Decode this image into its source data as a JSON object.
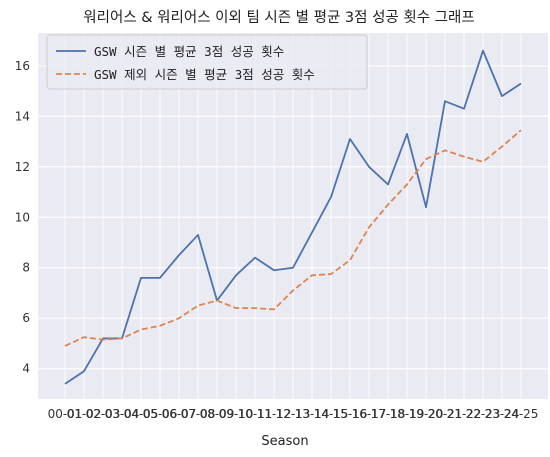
{
  "chart_data": {
    "type": "line",
    "title": "워리어스 & 워리어스 이외 팀 시즌 별 평균 3점 성공 횟수 그래프",
    "xlabel": "Season",
    "ylabel": "",
    "categories": [
      "00-01",
      "01-02",
      "02-03",
      "03-04",
      "04-05",
      "05-06",
      "06-07",
      "07-08",
      "08-09",
      "09-10",
      "10-11",
      "11-12",
      "12-13",
      "13-14",
      "14-15",
      "15-16",
      "16-17",
      "17-18",
      "18-19",
      "19-20",
      "20-21",
      "21-22",
      "22-23",
      "23-24",
      "24-25"
    ],
    "ylim": [
      2.8,
      17.3
    ],
    "yticks": [
      4,
      6,
      8,
      10,
      12,
      14,
      16
    ],
    "grid": true,
    "legend_position": "top-left",
    "series": [
      {
        "name": "GSW 시즌 별 평균 3점 성공 횟수",
        "color": "#4c72b0",
        "style": "solid",
        "values": [
          3.4,
          3.9,
          5.2,
          5.2,
          7.6,
          7.6,
          8.5,
          9.3,
          6.7,
          7.7,
          8.4,
          7.9,
          8.0,
          9.4,
          10.8,
          13.1,
          12.0,
          11.3,
          13.3,
          10.4,
          14.6,
          14.3,
          16.6,
          14.8,
          15.3
        ]
      },
      {
        "name": "GSW 제외 시즌 별 평균 3점 성공 횟수",
        "color": "#dd8452",
        "style": "dashed",
        "values": [
          4.9,
          5.25,
          5.15,
          5.2,
          5.55,
          5.7,
          6.0,
          6.5,
          6.7,
          6.4,
          6.4,
          6.35,
          7.1,
          7.7,
          7.75,
          8.3,
          9.6,
          10.5,
          11.3,
          12.3,
          12.65,
          12.4,
          12.2,
          12.8,
          13.45
        ]
      }
    ]
  }
}
